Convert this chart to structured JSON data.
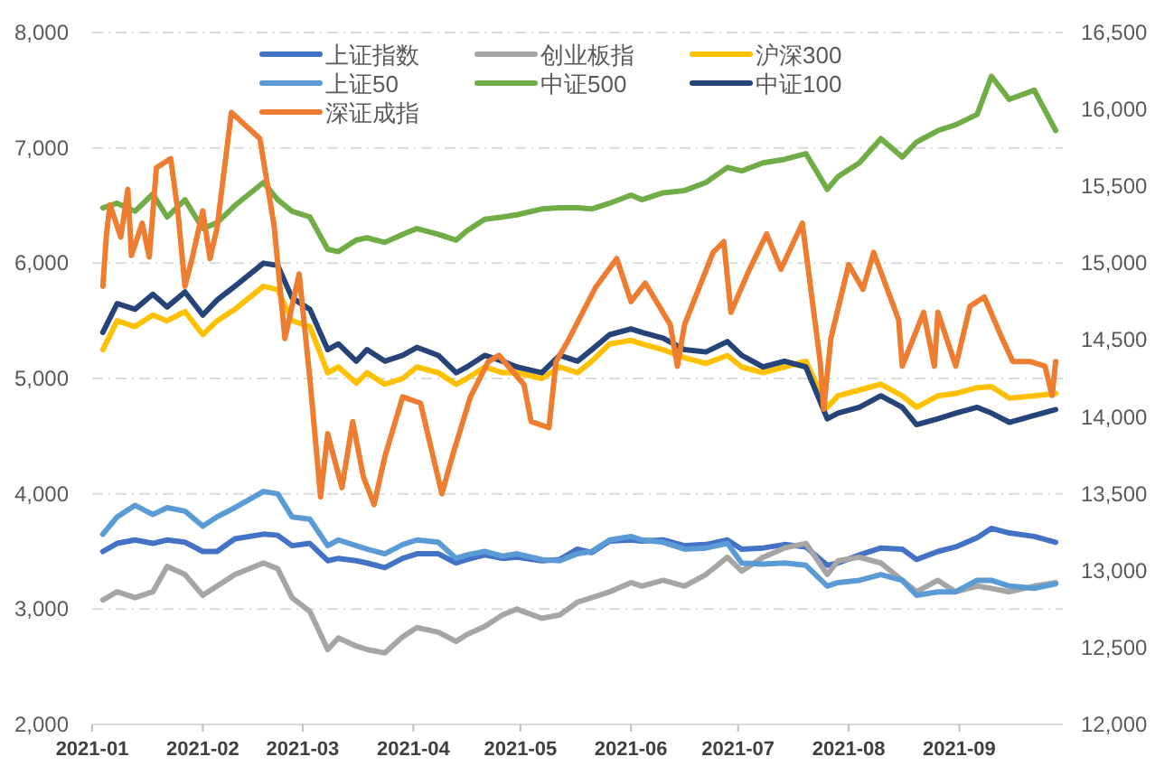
{
  "chart_data": {
    "type": "line",
    "legend": "top",
    "grid": "y",
    "line_style": "solid",
    "marker": "none",
    "xlim": [
      "2021-01-01",
      "2021-09-30"
    ],
    "xticks": [
      {
        "value": "2021-01-01",
        "label": "2021-01"
      },
      {
        "value": "2021-02-01",
        "label": "2021-02"
      },
      {
        "value": "2021-03-01",
        "label": "2021-03"
      },
      {
        "value": "2021-04-01",
        "label": "2021-04"
      },
      {
        "value": "2021-05-01",
        "label": "2021-05"
      },
      {
        "value": "2021-06-01",
        "label": "2021-06"
      },
      {
        "value": "2021-07-01",
        "label": "2021-07"
      },
      {
        "value": "2021-08-01",
        "label": "2021-08"
      },
      {
        "value": "2021-09-01",
        "label": "2021-09"
      }
    ],
    "ylim": [
      2000,
      8000
    ],
    "yticks": [
      {
        "value": 2000,
        "label": "2,000"
      },
      {
        "value": 3000,
        "label": "3,000"
      },
      {
        "value": 4000,
        "label": "4,000"
      },
      {
        "value": 5000,
        "label": "5,000"
      },
      {
        "value": 6000,
        "label": "6,000"
      },
      {
        "value": 7000,
        "label": "7,000"
      },
      {
        "value": 8000,
        "label": "8,000"
      }
    ],
    "y2lim": [
      12000,
      16500
    ],
    "y2ticks": [
      {
        "value": 12000,
        "label": "12,000"
      },
      {
        "value": 12500,
        "label": "12,500"
      },
      {
        "value": 13000,
        "label": "13,000"
      },
      {
        "value": 13500,
        "label": "13,500"
      },
      {
        "value": 14000,
        "label": "14,000"
      },
      {
        "value": 14500,
        "label": "14,500"
      },
      {
        "value": 15000,
        "label": "15,000"
      },
      {
        "value": 15500,
        "label": "15,500"
      },
      {
        "value": 16000,
        "label": "16,000"
      },
      {
        "value": 16500,
        "label": "16,500"
      }
    ],
    "x": [
      "2021-01-04",
      "2021-01-08",
      "2021-01-13",
      "2021-01-18",
      "2021-01-22",
      "2021-01-27",
      "2021-02-01",
      "2021-02-05",
      "2021-02-10",
      "2021-02-18",
      "2021-02-22",
      "2021-02-26",
      "2021-03-03",
      "2021-03-08",
      "2021-03-11",
      "2021-03-16",
      "2021-03-19",
      "2021-03-24",
      "2021-03-29",
      "2021-04-02",
      "2021-04-08",
      "2021-04-13",
      "2021-04-16",
      "2021-04-21",
      "2021-04-26",
      "2021-04-30",
      "2021-05-07",
      "2021-05-12",
      "2021-05-17",
      "2021-05-21",
      "2021-05-26",
      "2021-06-01",
      "2021-06-04",
      "2021-06-10",
      "2021-06-16",
      "2021-06-22",
      "2021-06-28",
      "2021-07-02",
      "2021-07-08",
      "2021-07-14",
      "2021-07-20",
      "2021-07-26",
      "2021-07-29",
      "2021-08-04",
      "2021-08-10",
      "2021-08-16",
      "2021-08-20",
      "2021-08-26",
      "2021-08-31",
      "2021-09-06",
      "2021-09-10",
      "2021-09-15",
      "2021-09-22",
      "2021-09-28"
    ],
    "series": [
      {
        "name": "上证指数",
        "color": "#4472c4",
        "values": [
          3500,
          3570,
          3600,
          3570,
          3600,
          3580,
          3500,
          3500,
          3610,
          3650,
          3640,
          3550,
          3570,
          3420,
          3440,
          3420,
          3400,
          3360,
          3440,
          3480,
          3480,
          3400,
          3430,
          3470,
          3440,
          3450,
          3420,
          3430,
          3520,
          3490,
          3590,
          3600,
          3590,
          3600,
          3550,
          3560,
          3600,
          3520,
          3530,
          3560,
          3540,
          3380,
          3400,
          3470,
          3530,
          3520,
          3430,
          3500,
          3540,
          3620,
          3700,
          3660,
          3630,
          3580
        ]
      },
      {
        "name": "创业板指",
        "color": "#a5a5a5",
        "values": [
          3080,
          3150,
          3100,
          3150,
          3370,
          3300,
          3120,
          3200,
          3300,
          3400,
          3350,
          3100,
          2980,
          2650,
          2750,
          2680,
          2650,
          2620,
          2760,
          2840,
          2800,
          2720,
          2780,
          2850,
          2950,
          3000,
          2920,
          2950,
          3060,
          3100,
          3150,
          3230,
          3200,
          3250,
          3200,
          3300,
          3450,
          3330,
          3450,
          3530,
          3570,
          3300,
          3420,
          3450,
          3400,
          3250,
          3150,
          3250,
          3150,
          3200,
          3180,
          3150,
          3200,
          3230
        ]
      },
      {
        "name": "沪深300",
        "color": "#ffc000",
        "values": [
          5250,
          5500,
          5450,
          5550,
          5500,
          5580,
          5380,
          5500,
          5600,
          5800,
          5770,
          5500,
          5450,
          5050,
          5100,
          4960,
          5050,
          4950,
          5000,
          5100,
          5050,
          4950,
          5000,
          5100,
          5050,
          5050,
          5000,
          5100,
          5050,
          5150,
          5300,
          5330,
          5300,
          5250,
          5180,
          5130,
          5200,
          5100,
          5050,
          5100,
          5150,
          4750,
          4850,
          4900,
          4950,
          4850,
          4750,
          4850,
          4870,
          4920,
          4930,
          4830,
          4850,
          4870
        ]
      },
      {
        "name": "上证50",
        "color": "#5b9bd5",
        "values": [
          3650,
          3800,
          3900,
          3820,
          3880,
          3850,
          3720,
          3800,
          3880,
          4020,
          4000,
          3800,
          3780,
          3550,
          3600,
          3550,
          3520,
          3480,
          3560,
          3600,
          3580,
          3440,
          3470,
          3500,
          3460,
          3480,
          3430,
          3420,
          3480,
          3500,
          3600,
          3630,
          3600,
          3580,
          3520,
          3530,
          3570,
          3400,
          3390,
          3400,
          3380,
          3200,
          3230,
          3250,
          3300,
          3250,
          3120,
          3150,
          3150,
          3250,
          3250,
          3200,
          3180,
          3220
        ]
      },
      {
        "name": "中证500",
        "color": "#70ad47",
        "values": [
          6480,
          6520,
          6450,
          6600,
          6400,
          6550,
          6300,
          6350,
          6500,
          6700,
          6550,
          6450,
          6400,
          6120,
          6100,
          6200,
          6220,
          6180,
          6250,
          6300,
          6250,
          6200,
          6280,
          6380,
          6400,
          6420,
          6470,
          6480,
          6480,
          6470,
          6520,
          6590,
          6550,
          6610,
          6630,
          6700,
          6830,
          6800,
          6870,
          6900,
          6950,
          6640,
          6750,
          6870,
          7080,
          6920,
          7050,
          7150,
          7200,
          7290,
          7620,
          7420,
          7500,
          7150
        ]
      },
      {
        "name": "中证100",
        "color": "#264478",
        "values": [
          5400,
          5650,
          5600,
          5730,
          5620,
          5750,
          5550,
          5680,
          5800,
          6000,
          5980,
          5700,
          5600,
          5250,
          5300,
          5150,
          5250,
          5150,
          5200,
          5270,
          5200,
          5050,
          5100,
          5200,
          5150,
          5100,
          5050,
          5200,
          5150,
          5250,
          5380,
          5430,
          5400,
          5350,
          5250,
          5230,
          5320,
          5200,
          5100,
          5150,
          5100,
          4650,
          4700,
          4750,
          4850,
          4750,
          4600,
          4650,
          4700,
          4750,
          4700,
          4620,
          4680,
          4730
        ]
      },
      {
        "name": "深证成指",
        "color": "#ed7d31",
        "axis": "y2",
        "x": [
          "2021-01-04",
          "2021-01-05",
          "2021-01-06",
          "2021-01-09",
          "2021-01-11",
          "2021-01-12",
          "2021-01-15",
          "2021-01-17",
          "2021-01-19",
          "2021-01-23",
          "2021-01-25",
          "2021-01-27",
          "2021-01-29",
          "2021-02-01",
          "2021-02-03",
          "2021-02-05",
          "2021-02-09",
          "2021-02-17",
          "2021-02-21",
          "2021-02-24",
          "2021-02-28",
          "2021-03-03",
          "2021-03-06",
          "2021-03-08",
          "2021-03-12",
          "2021-03-15",
          "2021-03-18",
          "2021-03-21",
          "2021-03-24",
          "2021-03-29",
          "2021-04-03",
          "2021-04-09",
          "2021-04-12",
          "2021-04-17",
          "2021-04-22",
          "2021-04-25",
          "2021-05-02",
          "2021-05-04",
          "2021-05-09",
          "2021-05-11",
          "2021-05-14",
          "2021-05-22",
          "2021-05-28",
          "2021-06-01",
          "2021-06-05",
          "2021-06-12",
          "2021-06-14",
          "2021-06-16",
          "2021-06-24",
          "2021-06-27",
          "2021-06-29",
          "2021-07-04",
          "2021-07-09",
          "2021-07-13",
          "2021-07-19",
          "2021-07-24",
          "2021-07-25",
          "2021-07-27",
          "2021-08-01",
          "2021-08-05",
          "2021-08-08",
          "2021-08-15",
          "2021-08-16",
          "2021-08-22",
          "2021-08-25",
          "2021-08-26",
          "2021-08-31",
          "2021-09-04",
          "2021-09-08",
          "2021-09-13",
          "2021-09-16",
          "2021-09-21",
          "2021-09-25",
          "2021-09-27",
          "2021-09-28"
        ],
        "values": [
          14850,
          15190,
          15380,
          15170,
          15480,
          15050,
          15260,
          15040,
          15620,
          15680,
          15340,
          14850,
          15030,
          15340,
          15030,
          15230,
          15980,
          15810,
          15240,
          14510,
          14930,
          14250,
          13480,
          13890,
          13540,
          13970,
          13610,
          13430,
          13740,
          14130,
          14090,
          13500,
          13750,
          14130,
          14360,
          14400,
          14210,
          13970,
          13930,
          14360,
          14480,
          14840,
          15030,
          14750,
          14870,
          14600,
          14330,
          14600,
          15070,
          15140,
          14680,
          14950,
          15190,
          14960,
          15260,
          14360,
          14050,
          14510,
          14990,
          14830,
          15070,
          14630,
          14330,
          14680,
          14330,
          14680,
          14330,
          14720,
          14780,
          14510,
          14360,
          14360,
          14330,
          14140,
          14360
        ]
      }
    ]
  }
}
